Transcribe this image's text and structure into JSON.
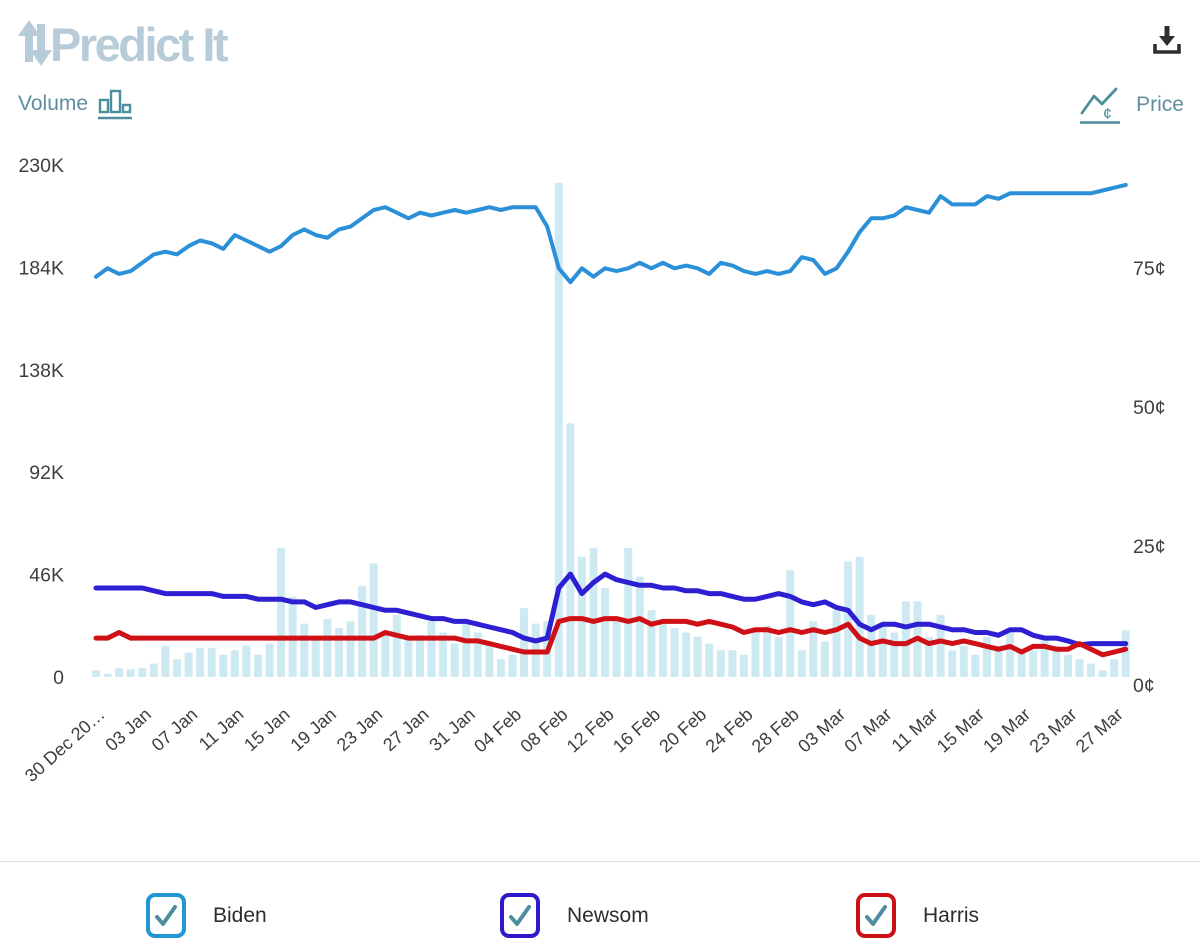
{
  "header": {
    "logo_text": "Predict It"
  },
  "toggles": {
    "volume_label": "Volume",
    "price_label": "Price"
  },
  "legend": [
    {
      "label": "Biden",
      "color": "#2196d3",
      "checked": true
    },
    {
      "label": "Newsom",
      "color": "#2d18cb",
      "checked": true
    },
    {
      "label": "Harris",
      "color": "#cc1016",
      "checked": true
    }
  ],
  "colors": {
    "logo": "#b7ccd8",
    "toggle_teal": "#5f8f9f",
    "axis_text": "#3f3f3f",
    "x_label_text": "#3d3d3d",
    "checkmark": "#4d8e9d",
    "download_icon": "#2f2f2f",
    "divider": "#dcdcdc"
  },
  "chart_data": {
    "type": "line",
    "title": "",
    "grid": false,
    "legend_position": "bottom",
    "x_tick_labels": [
      "30 Dec 20…",
      "03 Jan",
      "07 Jan",
      "11 Jan",
      "15 Jan",
      "19 Jan",
      "23 Jan",
      "27 Jan",
      "31 Jan",
      "04 Feb",
      "08 Feb",
      "12 Feb",
      "16 Feb",
      "20 Feb",
      "24 Feb",
      "28 Feb",
      "03 Mar",
      "07 Mar",
      "11 Mar",
      "15 Mar",
      "19 Mar",
      "23 Mar",
      "27 Mar"
    ],
    "x_tick_every_n_days": 4,
    "left_axis": {
      "label": "Volume",
      "ticks": [
        "0",
        "46K",
        "92K",
        "138K",
        "184K",
        "230K"
      ],
      "tick_values": [
        0,
        46,
        92,
        138,
        184,
        230
      ],
      "ylim": [
        0,
        230
      ],
      "unit": "K"
    },
    "right_axis": {
      "label": "Price",
      "ticks": [
        "0¢",
        "25¢",
        "50¢",
        "75¢"
      ],
      "tick_values": [
        0,
        25,
        50,
        75
      ],
      "ylim": [
        0,
        100
      ],
      "unit": "¢"
    },
    "bar_series": {
      "name": "Volume",
      "color": "#cde9f1",
      "unit": "K",
      "values": [
        3,
        1.5,
        4,
        3.5,
        4,
        6,
        14,
        8,
        11,
        13,
        13,
        10,
        12,
        14,
        10,
        15,
        58,
        36,
        24,
        18,
        26,
        22,
        25,
        41,
        51,
        20,
        28,
        18,
        19,
        25,
        20,
        15,
        25,
        20,
        15,
        8,
        10,
        31,
        24,
        25,
        222,
        114,
        54,
        58,
        40,
        26,
        58,
        45,
        30,
        25,
        22,
        20,
        18,
        15,
        12,
        12,
        10,
        22,
        23,
        18,
        48,
        12,
        25,
        16,
        30,
        52,
        54,
        28,
        24,
        20,
        34,
        34,
        18,
        28,
        12,
        14,
        10,
        18,
        14,
        22,
        11,
        12,
        18,
        14,
        10,
        8,
        6,
        3,
        8,
        21
      ]
    },
    "series": [
      {
        "name": "Biden",
        "color": "#2b90d8",
        "width": 4,
        "unit": "¢",
        "values": [
          72,
          73.5,
          72.5,
          73,
          74.5,
          76,
          76.5,
          76,
          77.5,
          78.5,
          78,
          77,
          79.5,
          78.5,
          77.5,
          76.5,
          77.5,
          79.5,
          80.5,
          79.5,
          79,
          80.5,
          81,
          82.5,
          84,
          84.5,
          83.5,
          82.5,
          83.5,
          83,
          83.5,
          84,
          83.5,
          84,
          84.5,
          84,
          84.5,
          84.5,
          84.5,
          81,
          73.5,
          71,
          73.5,
          72,
          73.5,
          73,
          73.5,
          74.5,
          73.5,
          74.5,
          73.5,
          74,
          73.5,
          72.5,
          74.5,
          74,
          73,
          72.5,
          73,
          72.5,
          73,
          75.5,
          75,
          72.5,
          73.5,
          76.5,
          80,
          82.5,
          82.5,
          83,
          84.5,
          84,
          83.5,
          86.5,
          85,
          85,
          85,
          86.5,
          86,
          87,
          87,
          87,
          87,
          87,
          87,
          87,
          87,
          87.5,
          88,
          88.5
        ]
      },
      {
        "name": "Newsom",
        "color": "#2e1fd2",
        "width": 5,
        "unit": "¢",
        "values": [
          16,
          16,
          16,
          16,
          16,
          15.5,
          15,
          15,
          15,
          15,
          15,
          14.5,
          14.5,
          14.5,
          14,
          14,
          14,
          13.5,
          13.5,
          12.5,
          13,
          13.5,
          13.5,
          13,
          12.5,
          12,
          12,
          11.5,
          11,
          10.5,
          10.5,
          10,
          10,
          9.5,
          9,
          8.5,
          8,
          7,
          6.5,
          7,
          16,
          18.5,
          15,
          17,
          18.5,
          17.5,
          17,
          16.5,
          16.5,
          16,
          16,
          15.5,
          15.5,
          15,
          15,
          14.5,
          14,
          14,
          14.5,
          15,
          14.5,
          13.5,
          13,
          13.5,
          12.5,
          12,
          9.5,
          8.5,
          9.5,
          9.5,
          9,
          9.5,
          9.5,
          9,
          8.5,
          8.5,
          8,
          8,
          7.5,
          8.5,
          8.5,
          7.5,
          7,
          7,
          6.5,
          5.8,
          6,
          6,
          6,
          6
        ]
      },
      {
        "name": "Harris",
        "color": "#cf1016",
        "width": 5,
        "unit": "¢",
        "values": [
          7,
          7,
          8,
          7,
          7,
          7,
          7,
          7,
          7,
          7,
          7,
          7,
          7,
          7,
          7,
          7,
          7,
          7,
          7,
          7,
          7,
          7,
          7,
          7,
          7,
          8,
          7.5,
          7,
          7,
          7,
          7,
          7,
          6.5,
          6.5,
          6,
          5.5,
          5,
          4.5,
          4.5,
          4.5,
          10,
          10.5,
          10.5,
          10,
          10.5,
          10.5,
          10,
          10.5,
          9.5,
          10,
          10,
          10,
          9.5,
          10,
          9.5,
          9,
          8,
          8.5,
          8.5,
          8,
          8.5,
          8,
          8.5,
          8,
          8.5,
          9.5,
          7,
          6,
          6.5,
          6,
          6,
          7,
          6,
          6.5,
          6,
          6.5,
          6,
          5.5,
          5,
          5.5,
          4.5,
          5.5,
          5.5,
          5,
          5,
          6,
          5,
          4,
          4.5,
          5
        ]
      }
    ]
  }
}
